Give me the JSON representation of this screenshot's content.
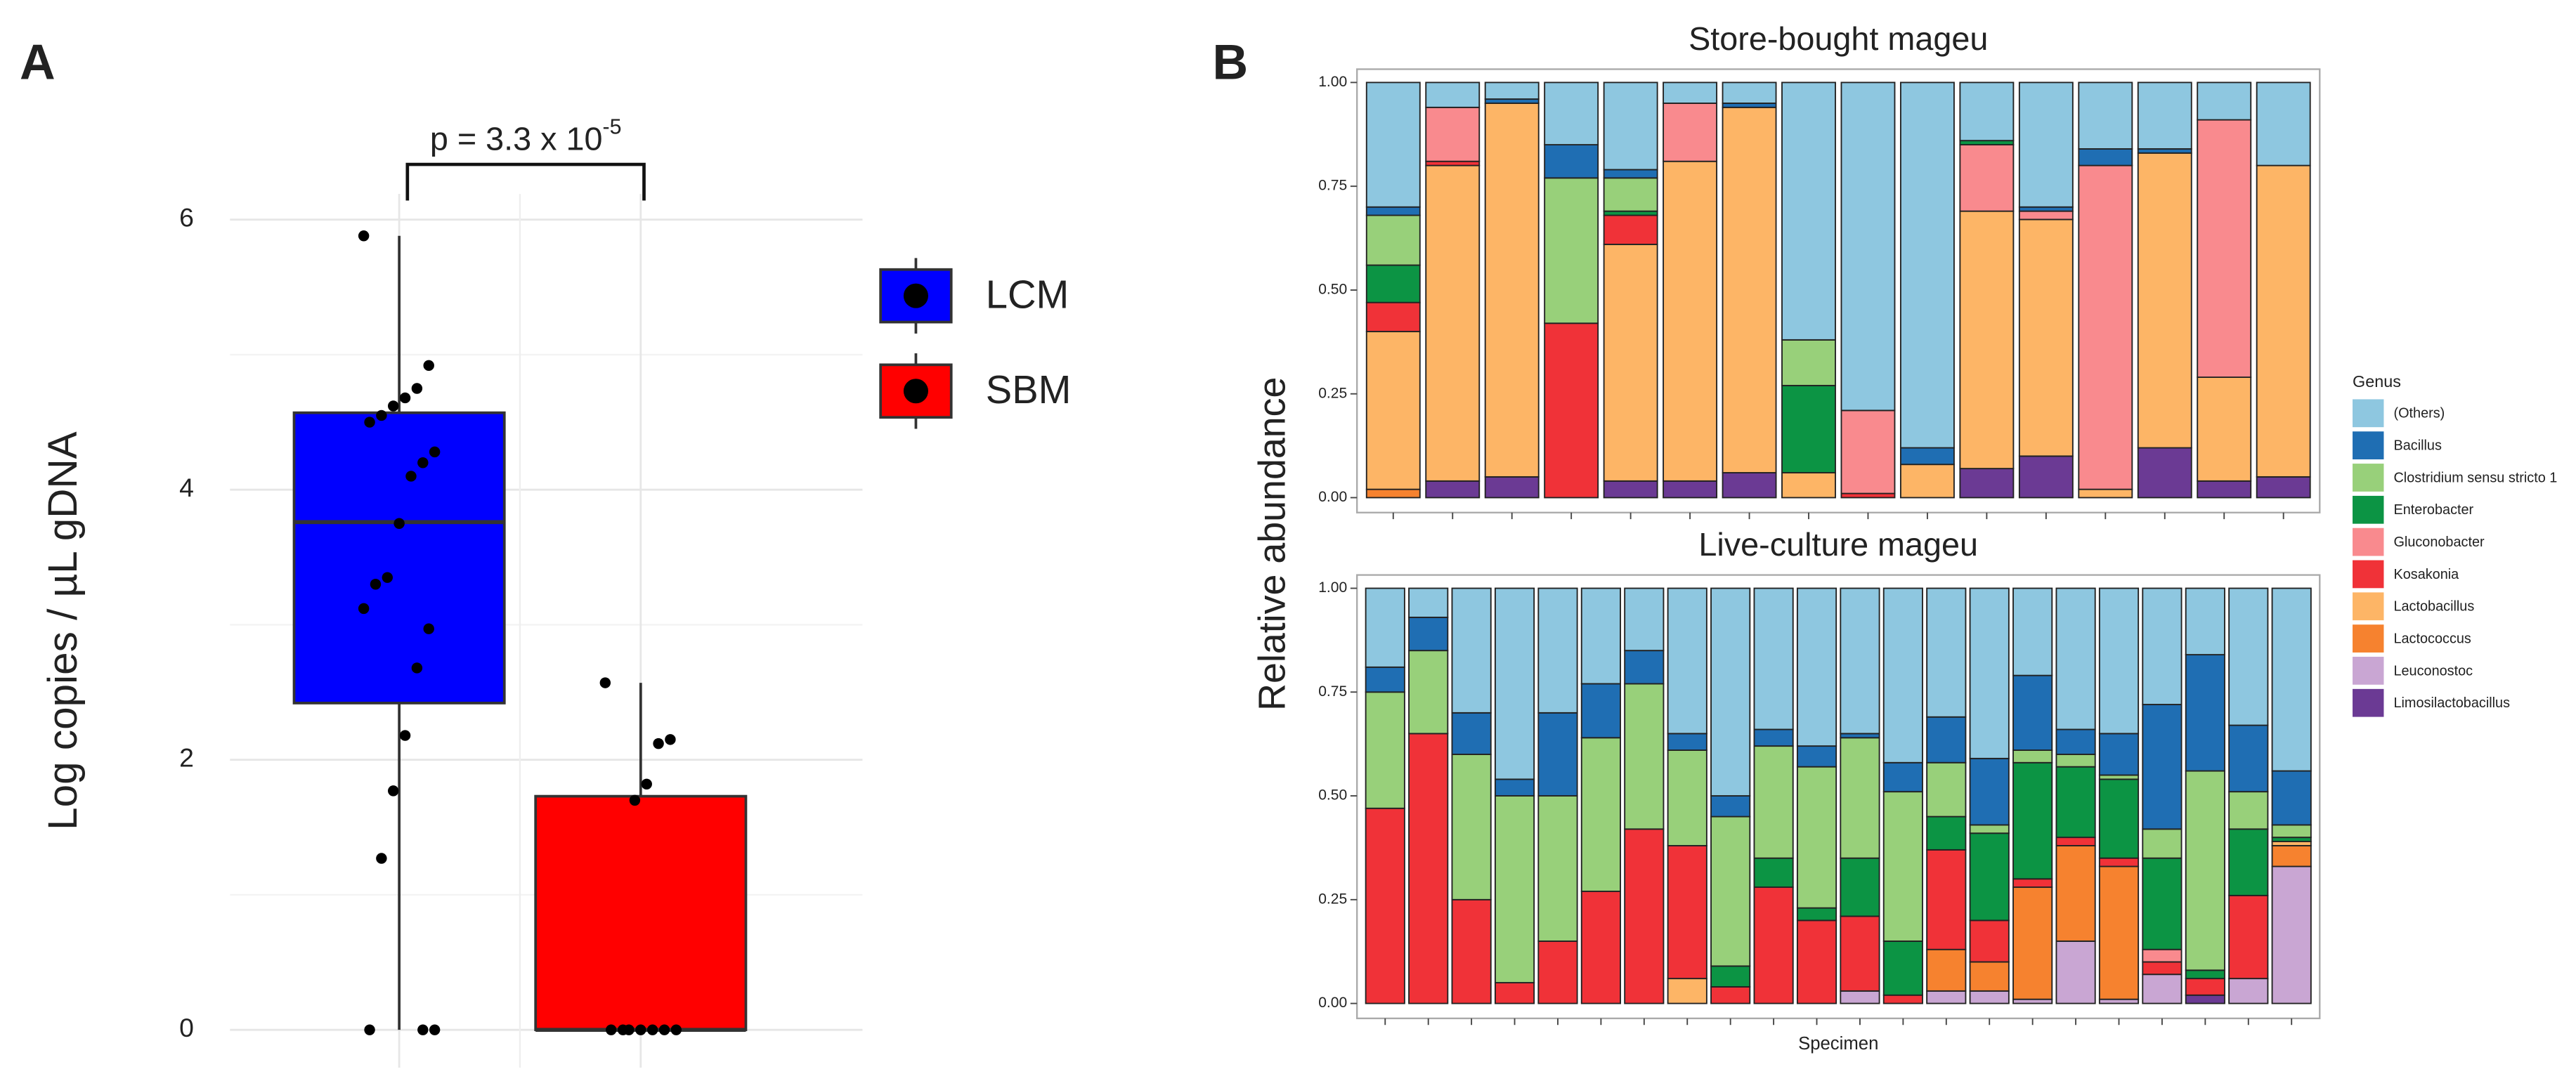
{
  "chart_data": [
    {
      "type": "box",
      "panel_label": "A",
      "ylabel": "Log copies / µL gDNA",
      "annotation": {
        "text": "p = 3.3 x 10",
        "superscript": "-5"
      },
      "ylim": [
        -0.28,
        6.19
      ],
      "yticks": [
        0,
        2,
        4,
        6
      ],
      "minor_yticks": [
        1,
        3,
        5
      ],
      "grid": true,
      "legend": "right",
      "categories": [
        null,
        null
      ],
      "series": [
        {
          "name": "LCM",
          "color": "#0000ff",
          "box": {
            "whislo": 0,
            "q1": 2.42,
            "med": 3.76,
            "q3": 4.57,
            "whishi": 5.88
          },
          "points": [
            5.88,
            4.92,
            4.75,
            4.68,
            4.62,
            4.55,
            4.5,
            4.28,
            4.2,
            4.1,
            3.75,
            3.35,
            3.3,
            3.12,
            2.97,
            2.68,
            2.18,
            1.77,
            1.27,
            0,
            0,
            0
          ]
        },
        {
          "name": "SBM",
          "color": "#ff0000",
          "box": {
            "whislo": 0,
            "q1": 0,
            "med": 0,
            "q3": 1.73,
            "whishi": 2.57
          },
          "points": [
            2.57,
            2.15,
            2.12,
            1.82,
            1.7,
            0,
            0,
            0,
            0,
            0,
            0,
            0
          ]
        }
      ]
    },
    {
      "type": "stacked_bar",
      "panel_label": "B",
      "title": "Store-bought mageu",
      "ylabel": "Relative abundance",
      "xlabel": "Specimen",
      "legend_title": "Genus",
      "legend": "right",
      "categories": [
        null,
        null,
        null,
        null,
        null,
        null,
        null,
        null,
        null,
        null,
        null,
        null,
        null,
        null,
        null,
        null
      ],
      "ylim": [
        -0.036,
        1.032
      ],
      "yticks": [
        {
          "value": 0,
          "label": "0.00"
        },
        {
          "value": 0.25,
          "label": "0.25"
        },
        {
          "value": 0.5,
          "label": "0.50"
        },
        {
          "value": 0.75,
          "label": "0.75"
        },
        {
          "value": 1,
          "label": "1.00"
        }
      ],
      "series": [
        {
          "name": "(Others)",
          "color": "#8ec7e0",
          "values": [
            0.3,
            0.06,
            0.04,
            0.15,
            0.21,
            0.05,
            0.05,
            0.62,
            0.79,
            0.88,
            0.14,
            0.3,
            0.16,
            0.16,
            0.09,
            0.2
          ]
        },
        {
          "name": "Bacillus",
          "color": "#1f6eb3",
          "values": [
            0.02,
            0,
            0.01,
            0.08,
            0.02,
            0,
            0.01,
            0,
            0,
            0.04,
            0,
            0.01,
            0.04,
            0.01,
            0,
            0
          ]
        },
        {
          "name": "Clostridium sensu stricto 1",
          "color": "#98d07a",
          "values": [
            0.12,
            0,
            0,
            0.35,
            0.08,
            0,
            0,
            0.11,
            0,
            0,
            0,
            0,
            0,
            0,
            0,
            0
          ]
        },
        {
          "name": "Enterobacter",
          "color": "#0c9444",
          "values": [
            0.09,
            0,
            0,
            0,
            0.01,
            0,
            0,
            0.21,
            0,
            0,
            0.01,
            0,
            0,
            0,
            0,
            0
          ]
        },
        {
          "name": "Gluconobacter",
          "color": "#f98a8e",
          "values": [
            0,
            0.13,
            0,
            0,
            0,
            0.14,
            0,
            0,
            0.2,
            0,
            0.16,
            0.02,
            0.78,
            0,
            0.62,
            0
          ]
        },
        {
          "name": "Kosakonia",
          "color": "#f03238",
          "values": [
            0.07,
            0.01,
            0,
            0.42,
            0.07,
            0,
            0,
            0,
            0.01,
            0,
            0,
            0,
            0,
            0,
            0,
            0
          ]
        },
        {
          "name": "Lactobacillus",
          "color": "#fdb566",
          "values": [
            0.38,
            0.76,
            0.9,
            0,
            0.57,
            0.77,
            0.88,
            0.06,
            0,
            0.08,
            0.62,
            0.57,
            0.02,
            0.71,
            0.25,
            0.75
          ]
        },
        {
          "name": "Lactococcus",
          "color": "#f6822f",
          "values": [
            0.02,
            0,
            0,
            0,
            0,
            0,
            0,
            0,
            0,
            0,
            0,
            0,
            0,
            0,
            0,
            0
          ]
        },
        {
          "name": "Leuconostoc",
          "color": "#c9a6d3",
          "values": [
            0,
            0,
            0,
            0,
            0,
            0,
            0,
            0,
            0,
            0,
            0,
            0,
            0,
            0,
            0,
            0
          ]
        },
        {
          "name": "Limosilactobacillus",
          "color": "#6b3a94",
          "values": [
            0,
            0.04,
            0.05,
            0,
            0.04,
            0.04,
            0.06,
            0,
            0,
            0,
            0.07,
            0.1,
            0,
            0.12,
            0.04,
            0.05
          ]
        }
      ]
    },
    {
      "type": "stacked_bar",
      "title": "Live-culture mageu",
      "categories": [
        null,
        null,
        null,
        null,
        null,
        null,
        null,
        null,
        null,
        null,
        null,
        null,
        null,
        null,
        null,
        null,
        null,
        null,
        null,
        null,
        null,
        null
      ],
      "ylim": [
        -0.036,
        1.032
      ],
      "yticks": [
        {
          "value": 0,
          "label": "0.00"
        },
        {
          "value": 0.25,
          "label": "0.25"
        },
        {
          "value": 0.5,
          "label": "0.50"
        },
        {
          "value": 0.75,
          "label": "0.75"
        },
        {
          "value": 1,
          "label": "1.00"
        }
      ],
      "series": [
        {
          "color": "#8ec7e0",
          "values": [
            0.19,
            0.07,
            0.3,
            0.46,
            0.3,
            0.23,
            0.15,
            0.35,
            0.5,
            0.34,
            0.38,
            0.35,
            0.42,
            0.31,
            0.41,
            0.21,
            0.34,
            0.35,
            0.28,
            0.16,
            0.33,
            0.44
          ]
        },
        {
          "color": "#1f6eb3",
          "values": [
            0.06,
            0.08,
            0.1,
            0.04,
            0.2,
            0.13,
            0.08,
            0.04,
            0.05,
            0.04,
            0.05,
            0.01,
            0.07,
            0.11,
            0.16,
            0.18,
            0.06,
            0.1,
            0.3,
            0.28,
            0.16,
            0.13
          ]
        },
        {
          "color": "#98d07a",
          "values": [
            0.28,
            0.2,
            0.35,
            0.45,
            0.35,
            0.37,
            0.35,
            0.23,
            0.36,
            0.27,
            0.34,
            0.29,
            0.36,
            0.13,
            0.02,
            0.03,
            0.03,
            0.01,
            0.07,
            0.48,
            0.09,
            0.03
          ]
        },
        {
          "color": "#0c9444",
          "values": [
            0,
            0,
            0,
            0,
            0,
            0,
            0,
            0,
            0.05,
            0.07,
            0.03,
            0.14,
            0.13,
            0.08,
            0.21,
            0.28,
            0.17,
            0.19,
            0.22,
            0.02,
            0.16,
            0.01
          ]
        },
        {
          "color": "#f98a8e",
          "values": [
            0,
            0,
            0,
            0,
            0,
            0,
            0,
            0,
            0,
            0,
            0,
            0,
            0,
            0,
            0,
            0,
            0,
            0,
            0.03,
            0,
            0,
            0
          ]
        },
        {
          "color": "#f03238",
          "values": [
            0.47,
            0.65,
            0.25,
            0.05,
            0.15,
            0.27,
            0.42,
            0.32,
            0.04,
            0.28,
            0.2,
            0.18,
            0.02,
            0.24,
            0.1,
            0.02,
            0.02,
            0.02,
            0.03,
            0.04,
            0.2,
            0
          ]
        },
        {
          "color": "#fdb566",
          "values": [
            0,
            0,
            0,
            0,
            0,
            0,
            0,
            0.06,
            0,
            0,
            0,
            0,
            0,
            0,
            0,
            0,
            0,
            0,
            0,
            0,
            0,
            0.01
          ]
        },
        {
          "color": "#f6822f",
          "values": [
            0,
            0,
            0,
            0,
            0,
            0,
            0,
            0,
            0,
            0,
            0,
            0,
            0,
            0.1,
            0.07,
            0.27,
            0.23,
            0.32,
            0,
            0,
            0,
            0.05
          ]
        },
        {
          "color": "#c9a6d3",
          "values": [
            0,
            0,
            0,
            0,
            0,
            0,
            0,
            0,
            0,
            0,
            0,
            0.03,
            0,
            0.03,
            0.03,
            0.01,
            0.15,
            0.01,
            0.07,
            0,
            0.06,
            0.33
          ]
        },
        {
          "color": "#6b3a94",
          "values": [
            0,
            0,
            0,
            0,
            0,
            0,
            0,
            0,
            0,
            0,
            0,
            0,
            0,
            0,
            0,
            0,
            0,
            0,
            0,
            0.02,
            0,
            0
          ]
        }
      ]
    }
  ]
}
